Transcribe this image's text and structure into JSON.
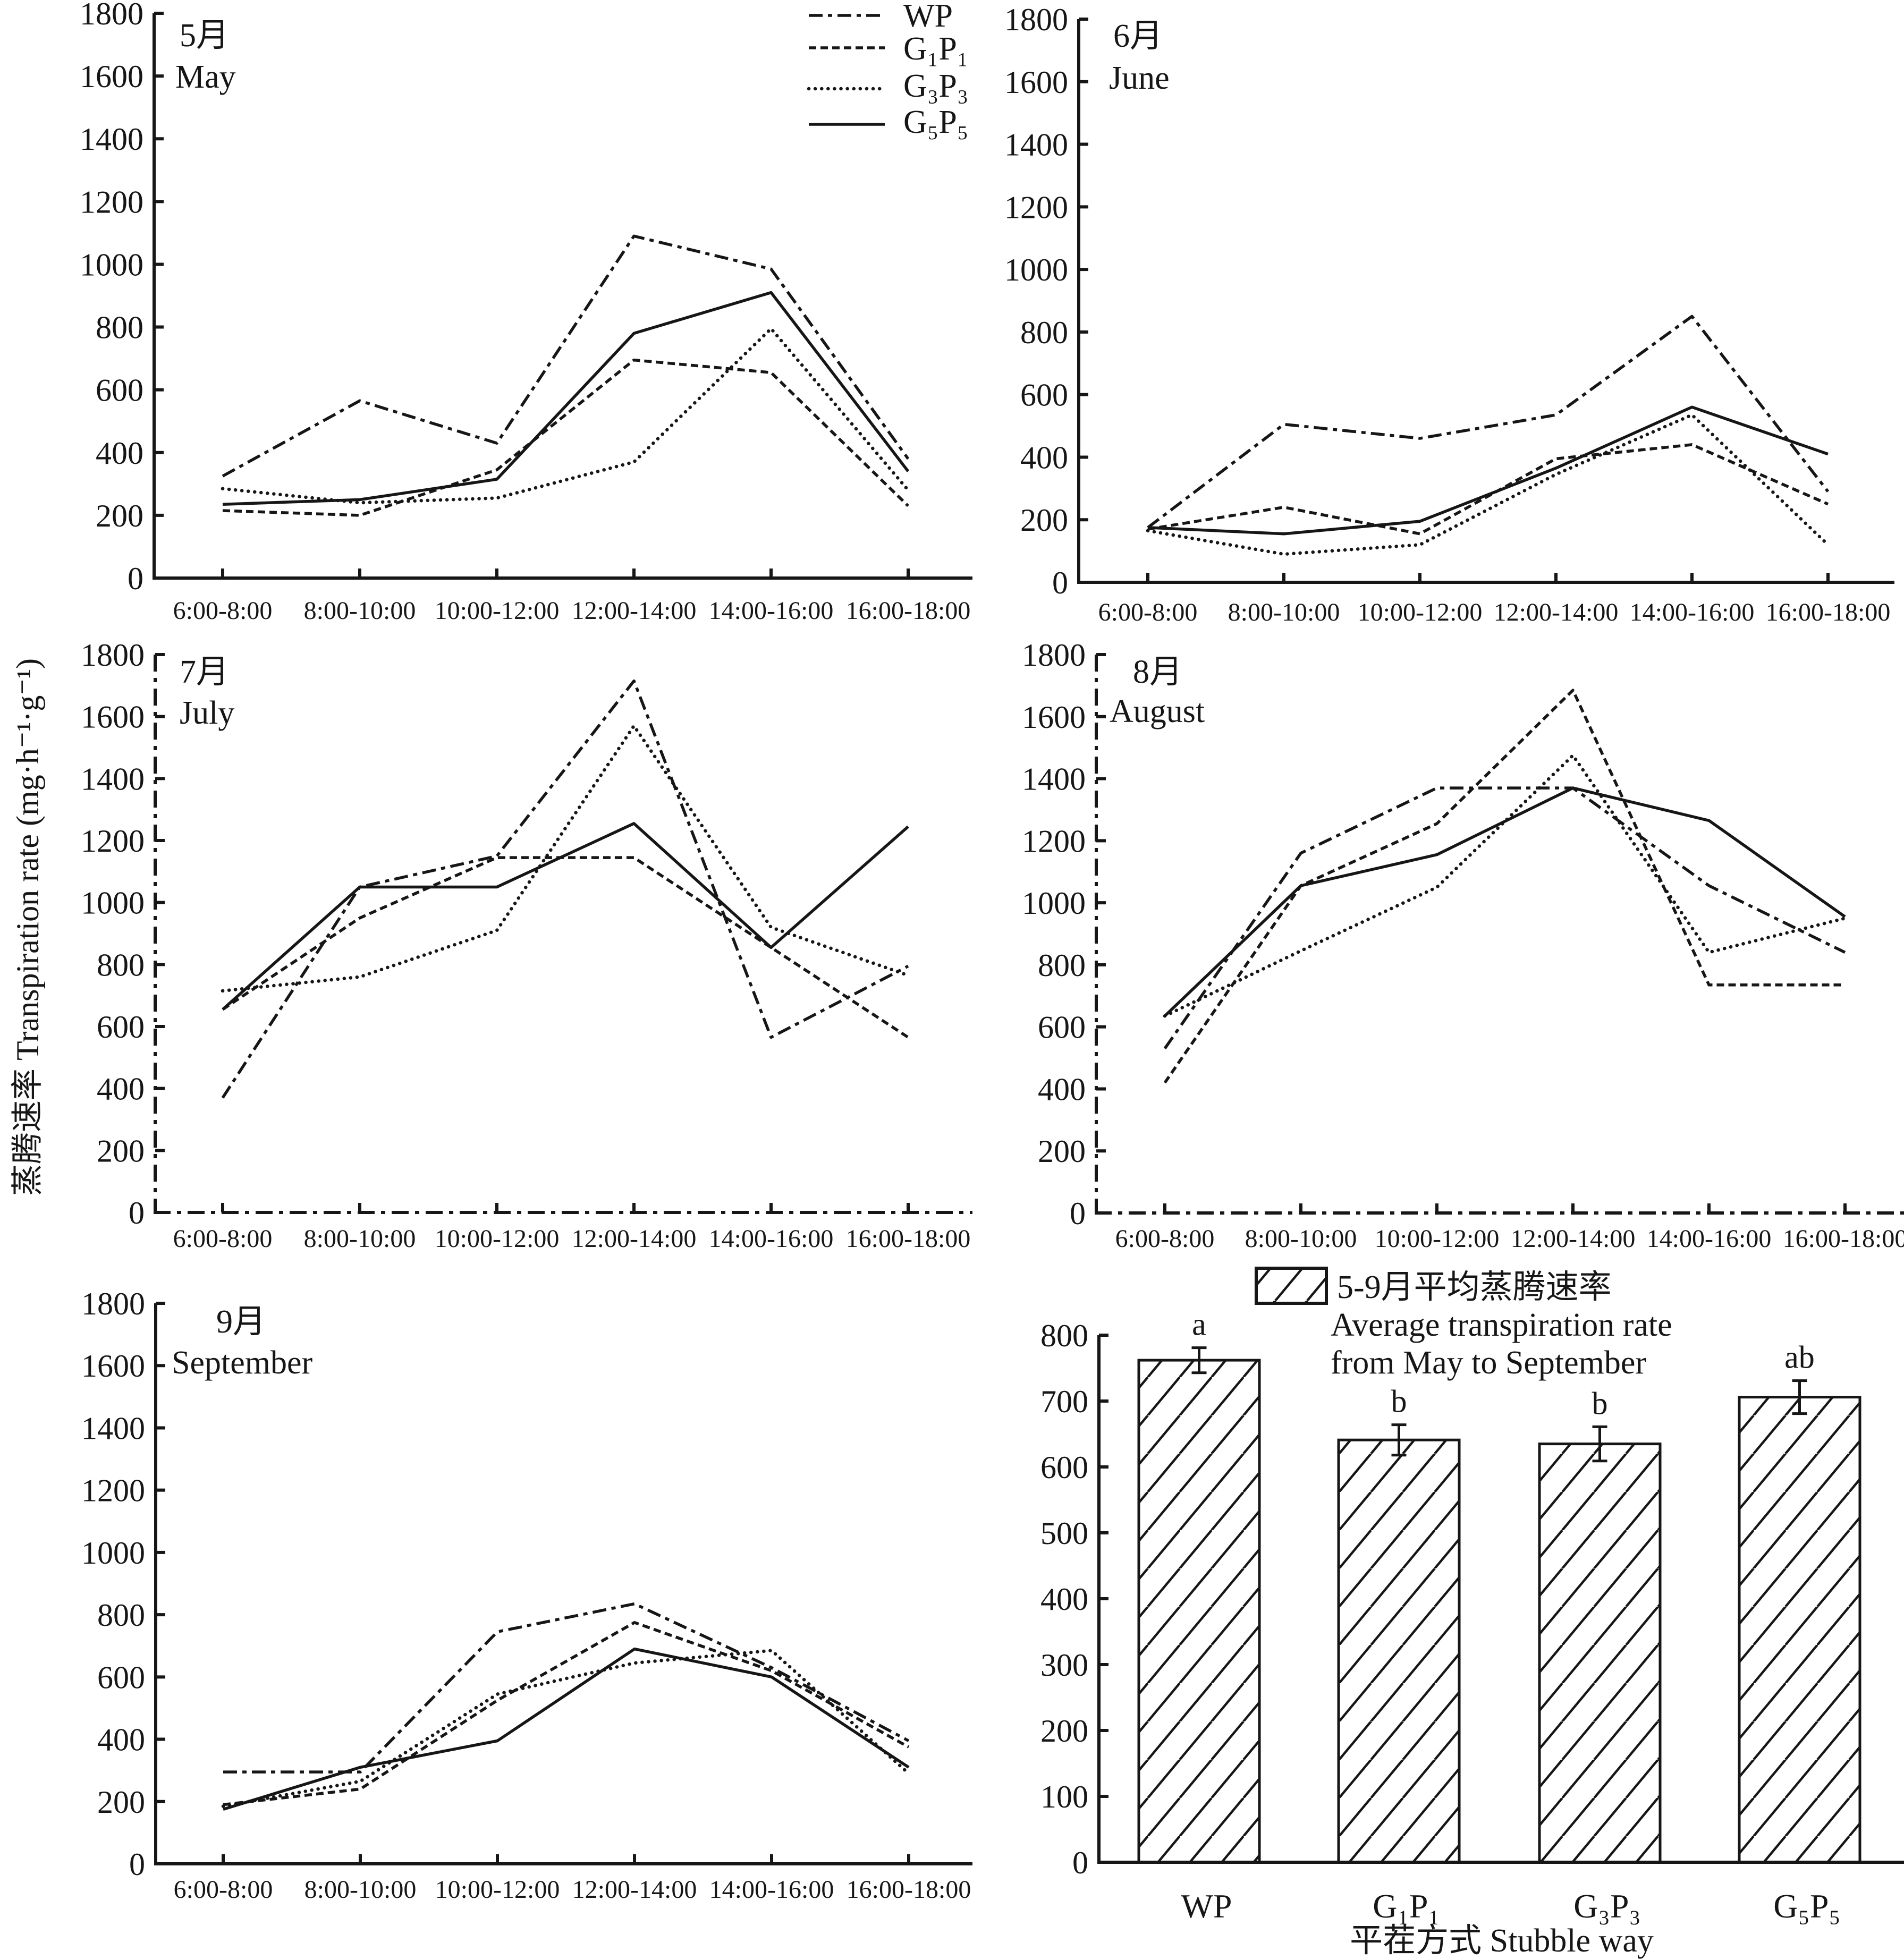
{
  "figure": {
    "ylabel": "蒸腾速率 Transpiration rate (mg·h⁻¹·g⁻¹)",
    "legend": {
      "position": "top-right",
      "entries": [
        {
          "name": "WP",
          "dash": "dash-dot"
        },
        {
          "name": "G₁P₁",
          "dash": "dashed"
        },
        {
          "name": "G₃P₃",
          "dash": "dotted"
        },
        {
          "name": "G₅P₅",
          "dash": "solid"
        }
      ]
    }
  },
  "chart_data": [
    {
      "type": "line",
      "title": "5月",
      "subtitle": "May",
      "xlabel": "",
      "ylabel": "蒸腾速率 Transpiration rate (mg·h⁻¹·g⁻¹)",
      "categories": [
        "6:00-8:00",
        "8:00-10:00",
        "10:00-12:00",
        "12:00-14:00",
        "14:00-16:00",
        "16:00-18:00"
      ],
      "ylim": [
        0,
        1800
      ],
      "yticks": [
        0,
        200,
        400,
        600,
        800,
        1000,
        1200,
        1400,
        1600,
        1800
      ],
      "grid": false,
      "series": [
        {
          "name": "WP",
          "values": [
            325,
            565,
            430,
            1090,
            985,
            380
          ]
        },
        {
          "name": "G₁P₁",
          "values": [
            215,
            200,
            345,
            695,
            655,
            230
          ]
        },
        {
          "name": "G₃P₃",
          "values": [
            285,
            240,
            255,
            370,
            795,
            280
          ]
        },
        {
          "name": "G₅P₅",
          "values": [
            235,
            250,
            315,
            780,
            910,
            340
          ]
        }
      ]
    },
    {
      "type": "line",
      "title": "6月",
      "subtitle": "June",
      "xlabel": "",
      "ylabel": "蒸腾速率 Transpiration rate (mg·h⁻¹·g⁻¹)",
      "categories": [
        "6:00-8:00",
        "8:00-10:00",
        "10:00-12:00",
        "12:00-14:00",
        "14:00-16:00",
        "16:00-18:00"
      ],
      "ylim": [
        0,
        1800
      ],
      "yticks": [
        0,
        200,
        400,
        600,
        800,
        1000,
        1200,
        1400,
        1600,
        1800
      ],
      "grid": false,
      "series": [
        {
          "name": "WP",
          "values": [
            175,
            505,
            460,
            535,
            850,
            290
          ]
        },
        {
          "name": "G₁P₁",
          "values": [
            170,
            240,
            155,
            395,
            440,
            250
          ]
        },
        {
          "name": "G₃P₃",
          "values": [
            165,
            90,
            120,
            345,
            535,
            120
          ]
        },
        {
          "name": "G₅P₅",
          "values": [
            175,
            155,
            195,
            365,
            560,
            410
          ]
        }
      ]
    },
    {
      "type": "line",
      "title": "7月",
      "subtitle": "July",
      "xlabel": "",
      "ylabel": "蒸腾速率 Transpiration rate (mg·h⁻¹·g⁻¹)",
      "categories": [
        "6:00-8:00",
        "8:00-10:00",
        "10:00-12:00",
        "12:00-14:00",
        "14:00-16:00",
        "16:00-18:00"
      ],
      "ylim": [
        0,
        1800
      ],
      "yticks": [
        0,
        200,
        400,
        600,
        800,
        1000,
        1200,
        1400,
        1600,
        1800
      ],
      "grid": false,
      "series": [
        {
          "name": "WP",
          "values": [
            370,
            1050,
            1150,
            1715,
            565,
            795
          ]
        },
        {
          "name": "G₁P₁",
          "values": [
            655,
            950,
            1145,
            1145,
            855,
            565
          ]
        },
        {
          "name": "G₃P₃",
          "values": [
            715,
            760,
            910,
            1570,
            920,
            765
          ]
        },
        {
          "name": "G₅P₅",
          "values": [
            655,
            1050,
            1050,
            1255,
            855,
            1245
          ]
        }
      ]
    },
    {
      "type": "line",
      "title": "8月",
      "subtitle": "August",
      "xlabel": "",
      "ylabel": "蒸腾速率 Transpiration rate (mg·h⁻¹·g⁻¹)",
      "categories": [
        "6:00-8:00",
        "8:00-10:00",
        "10:00-12:00",
        "12:00-14:00",
        "14:00-16:00",
        "16:00-18:00"
      ],
      "ylim": [
        0,
        1800
      ],
      "yticks": [
        0,
        200,
        400,
        600,
        800,
        1000,
        1200,
        1400,
        1600,
        1800
      ],
      "grid": false,
      "series": [
        {
          "name": "WP",
          "values": [
            530,
            1160,
            1370,
            1370,
            1055,
            840
          ]
        },
        {
          "name": "G₁P₁",
          "values": [
            420,
            1055,
            1255,
            1685,
            735,
            735
          ]
        },
        {
          "name": "G₃P₃",
          "values": [
            635,
            845,
            1050,
            1475,
            840,
            950
          ]
        },
        {
          "name": "G₅P₅",
          "values": [
            635,
            1055,
            1155,
            1370,
            1265,
            955
          ]
        }
      ]
    },
    {
      "type": "line",
      "title": "9月",
      "subtitle": "September",
      "xlabel": "",
      "ylabel": "蒸腾速率 Transpiration rate (mg·h⁻¹·g⁻¹)",
      "categories": [
        "6:00-8:00",
        "8:00-10:00",
        "10:00-12:00",
        "12:00-14:00",
        "14:00-16:00",
        "16:00-18:00"
      ],
      "ylim": [
        0,
        1800
      ],
      "yticks": [
        0,
        200,
        400,
        600,
        800,
        1000,
        1200,
        1400,
        1600,
        1800
      ],
      "grid": false,
      "series": [
        {
          "name": "WP",
          "values": [
            295,
            295,
            745,
            835,
            630,
            395
          ]
        },
        {
          "name": "G₁P₁",
          "values": [
            190,
            240,
            525,
            775,
            620,
            375
          ]
        },
        {
          "name": "G₃P₃",
          "values": [
            185,
            265,
            545,
            645,
            685,
            290
          ]
        },
        {
          "name": "G₅P₅",
          "values": [
            175,
            310,
            395,
            690,
            600,
            310
          ]
        }
      ]
    },
    {
      "type": "bar",
      "title": "5-9月平均蒸腾速率",
      "subtitle": [
        "Average transpiration rate",
        "from May to September"
      ],
      "xlabel": "平茬方式 Stubble way",
      "ylabel": "蒸腾速率 Transpiration rate (mg·h⁻¹·g⁻¹)",
      "categories": [
        "WP",
        "G₁P₁",
        "G₃P₃",
        "G₅P₅"
      ],
      "values": [
        762,
        641,
        635,
        706
      ],
      "errors": [
        19,
        23,
        26,
        25
      ],
      "significance": [
        "a",
        "b",
        "b",
        "ab"
      ],
      "ylim": [
        0,
        800
      ],
      "yticks": [
        0,
        100,
        200,
        300,
        400,
        500,
        600,
        700,
        800
      ],
      "grid": false,
      "legend": "top"
    }
  ]
}
